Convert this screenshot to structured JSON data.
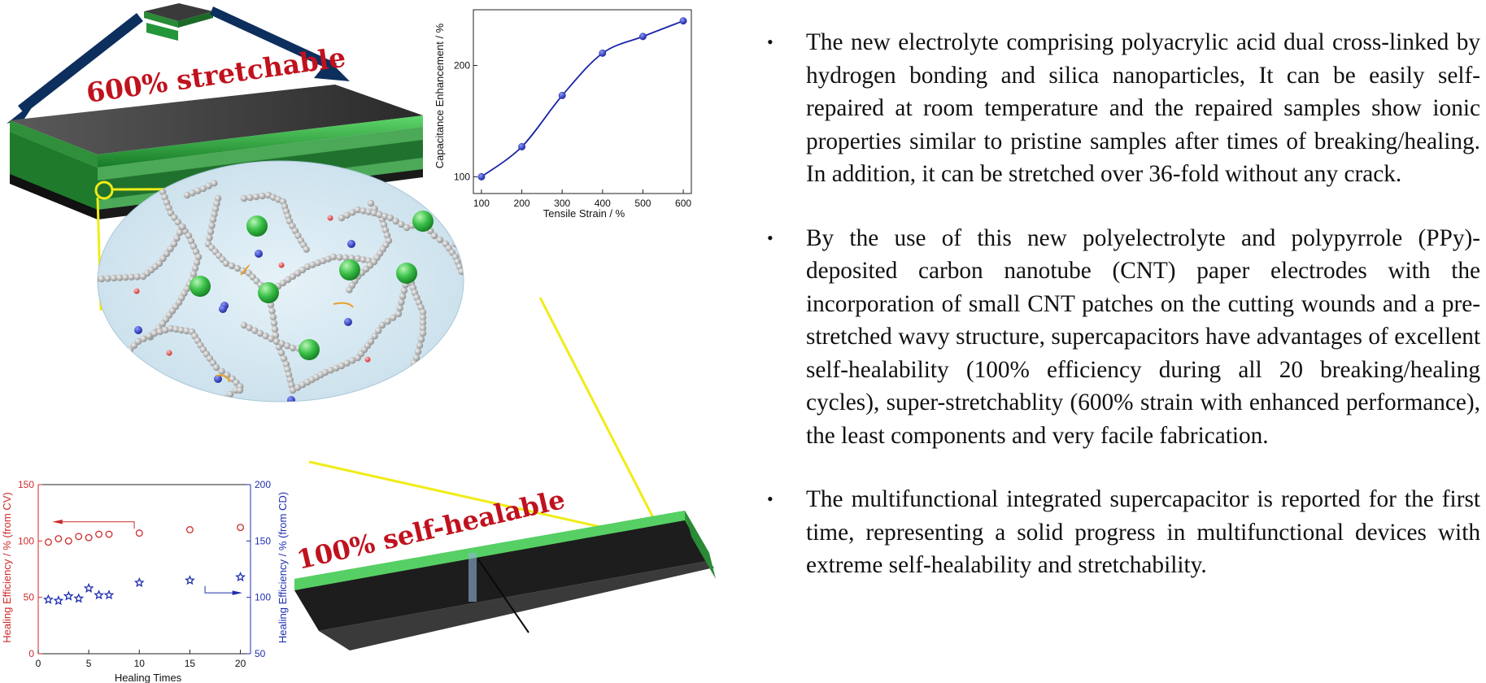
{
  "banners": {
    "stretchable": "600% stretchable",
    "self_healable": "100% self-healable"
  },
  "colors": {
    "accent_red": "#c0121e",
    "cv_series": "#cc2a2a",
    "cd_series": "#1f2fb0",
    "fit_line": "#1a24a8",
    "electrode_green": "#27a33b",
    "navy_arrow": "#0d2f5e",
    "callout_yellow": "#f0ec18"
  },
  "bullets": [
    {
      "marker": "•",
      "text": "The new electrolyte comprising polyacrylic acid dual cross-linked by hydrogen bonding and silica nanoparticles, It can be easily self-repaired at room temperature and the repaired samples show ionic properties similar to pristine samples after times of breaking/healing. In addition, it can be stretched over 36-fold without any crack."
    },
    {
      "marker": "•",
      "text": "By the use of this new polyelectrolyte and polypyrrole (PPy)-deposited carbon nanotube (CNT) paper electrodes with the incorporation of small CNT patches on the cutting wounds and a pre-stretched wavy structure, supercapacitors have advantages of excellent self-healability (100% efficiency during all 20 breaking/healing cycles), super-stretchablity (600% strain with enhanced performance), the least components and very facile fabrication."
    },
    {
      "marker": "•",
      "text": "The multifunctional integrated supercapacitor is reported for the first time, representing a solid progress in multifunctional devices with extreme self-healability and stretchability."
    }
  ],
  "chart_data": [
    {
      "type": "line",
      "xlabel": "Tensile Strain / %",
      "ylabel": "Capacitance Enhancement / %",
      "xlim": [
        80,
        620
      ],
      "ylim": [
        85,
        250
      ],
      "xticks": [
        "100",
        "200",
        "300",
        "400",
        "500",
        "600"
      ],
      "yticks": [
        "100",
        "200"
      ],
      "x": [
        100,
        200,
        300,
        400,
        500,
        600
      ],
      "series": [
        {
          "values": [
            100,
            127,
            173,
            211,
            226,
            240
          ],
          "color": "#1a24a8"
        }
      ]
    },
    {
      "type": "scatter",
      "xlabel": "Healing Times",
      "ylabel": "Healing Efficiency / % (from CV)",
      "ylabel_right": "Healing Efficiency / % (from CD)",
      "xlim": [
        0,
        21
      ],
      "ylim": [
        0,
        150
      ],
      "ylim_right": [
        50,
        200
      ],
      "xticks": [
        "0",
        "5",
        "10",
        "15",
        "20"
      ],
      "yticks": [
        "0",
        "50",
        "100",
        "150"
      ],
      "yticks_right": [
        "50",
        "100",
        "150",
        "200"
      ],
      "series": [
        {
          "axis": "left",
          "marker": "circle",
          "color": "#cc2a2a",
          "x": [
            1,
            2,
            3,
            4,
            5,
            6,
            7,
            10,
            15,
            20
          ],
          "values": [
            99,
            102,
            100,
            104,
            103,
            106,
            106,
            107,
            110,
            112
          ]
        },
        {
          "axis": "right",
          "marker": "star",
          "color": "#1f2fb0",
          "x": [
            1,
            2,
            3,
            4,
            5,
            6,
            7,
            10,
            15,
            20
          ],
          "values": [
            98,
            97,
            101,
            99,
            108,
            102,
            102,
            113,
            115,
            118
          ]
        }
      ]
    }
  ]
}
